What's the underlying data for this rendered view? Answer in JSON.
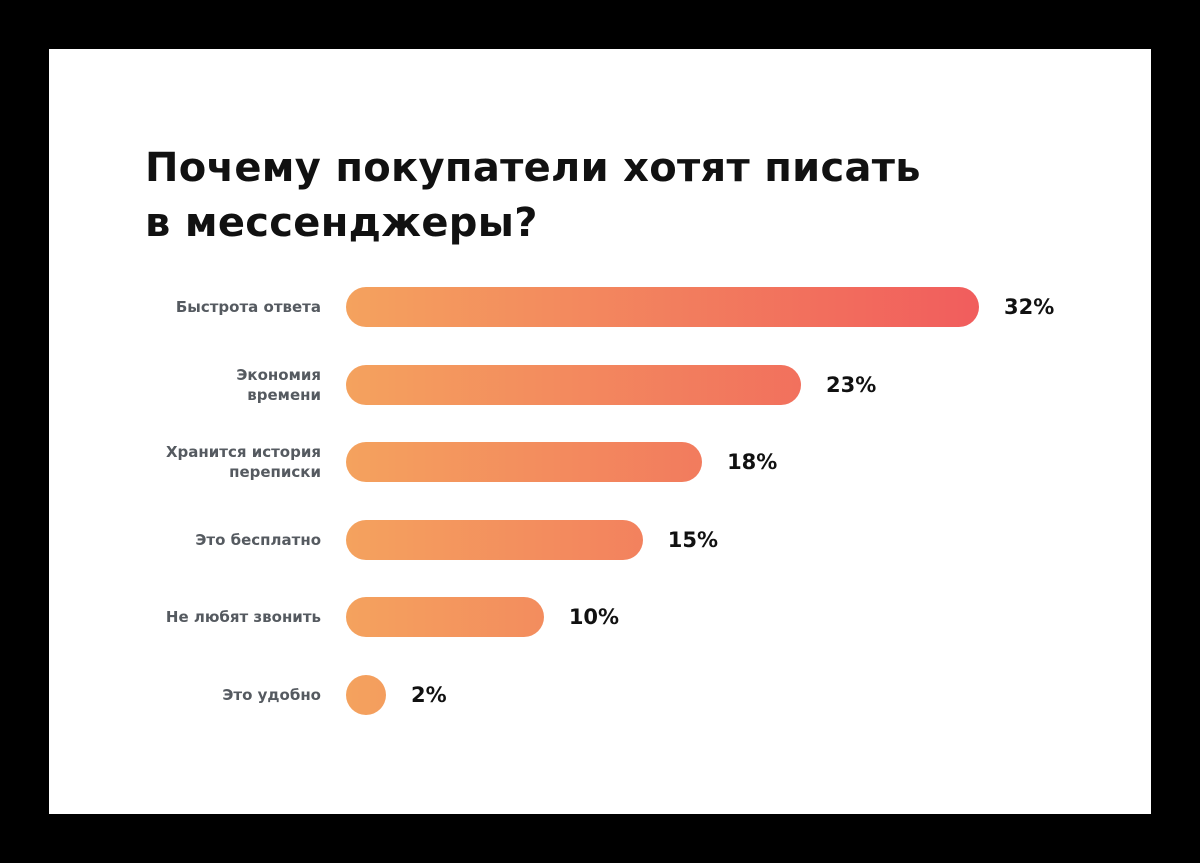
{
  "colors": {
    "background": "#000000",
    "card": "#ffffff",
    "bar_start": "#f4a25e",
    "bar_end": "#f15d5d",
    "title": "#111111",
    "label": "#555a60"
  },
  "chart_data": {
    "type": "bar",
    "orientation": "horizontal",
    "title_lines": [
      "Почему покупатели хотят писать",
      "в мессенджеры?"
    ],
    "categories": [
      [
        "Быстрота ответа"
      ],
      [
        "Экономия",
        "времени"
      ],
      [
        "Хранится история",
        "переписки"
      ],
      [
        "Это бесплатно"
      ],
      [
        "Не любят звонить"
      ],
      [
        "Это удобно"
      ]
    ],
    "values": [
      32,
      23,
      18,
      15,
      10,
      2
    ],
    "value_labels": [
      "32%",
      "23%",
      "18%",
      "15%",
      "10%",
      "2%"
    ],
    "unit": "%",
    "xlim": [
      0,
      32
    ],
    "grid": false,
    "legend": "none"
  }
}
